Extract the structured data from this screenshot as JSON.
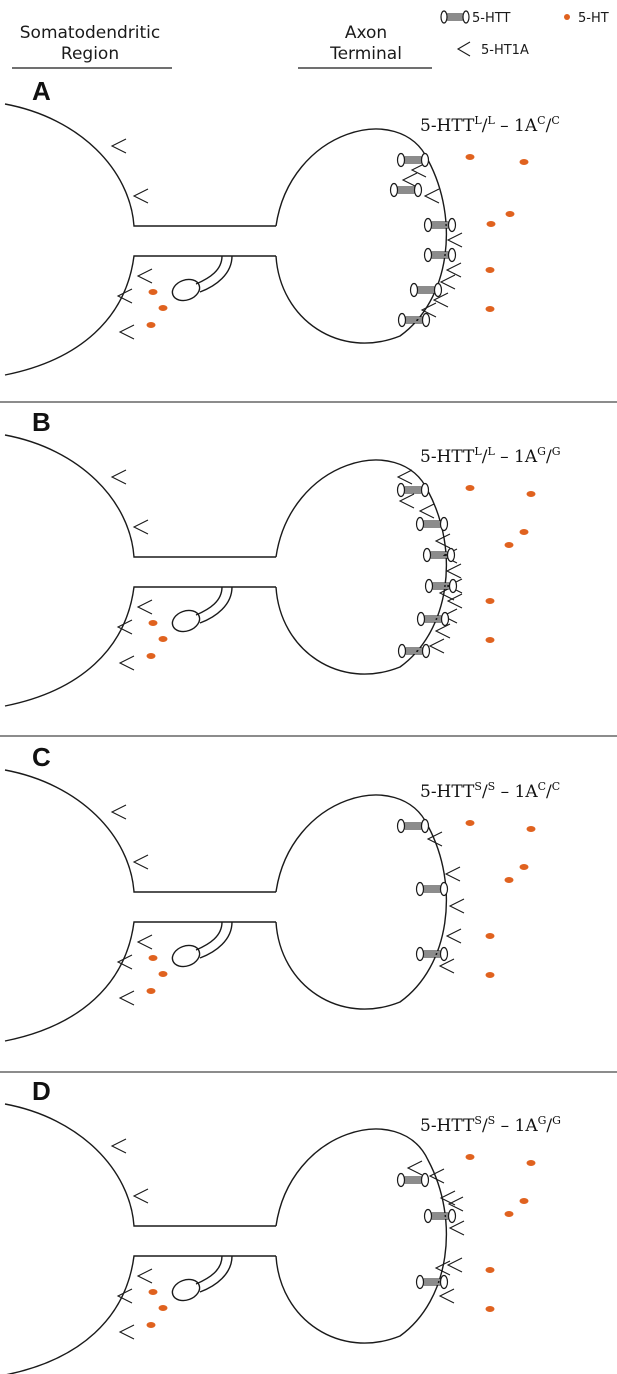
{
  "header": {
    "left_title_line1": "Somatodendritic",
    "left_title_line2": "Region",
    "right_title_line1": "Axon",
    "right_title_line2": "Terminal"
  },
  "legend": {
    "transporter": "5-HTT",
    "serotonin": "5-HT",
    "receptor": "5-HT1A"
  },
  "colors": {
    "serotonin_dot": "#e0621f",
    "line": "#1a1a1a"
  },
  "panels": [
    {
      "letter": "A",
      "genotype": {
        "base1": "5-HTT",
        "sup1": "L",
        "sub1": "L",
        "mid": " – 1A",
        "sup2": "C",
        "sub2": "C"
      },
      "transporters": 6,
      "terminal_receptors": 8,
      "synapse_dots": 7
    },
    {
      "letter": "B",
      "genotype": {
        "base1": "5-HTT",
        "sup1": "L",
        "sub1": "L",
        "mid": " – 1A",
        "sup2": "G",
        "sub2": "G"
      },
      "transporters": 6,
      "terminal_receptors": 12,
      "synapse_dots": 5
    },
    {
      "letter": "C",
      "genotype": {
        "base1": "5-HTT",
        "sup1": "S",
        "sub1": "S",
        "mid": " – 1A",
        "sup2": "C",
        "sub2": "C"
      },
      "transporters": 3,
      "terminal_receptors": 5,
      "synapse_dots": 5
    },
    {
      "letter": "D",
      "genotype": {
        "base1": "5-HTT",
        "sup1": "S",
        "sub1": "S",
        "mid": " – 1A",
        "sup2": "G",
        "sub2": "G"
      },
      "transporters": 3,
      "terminal_receptors": 8,
      "synapse_dots": 5
    }
  ]
}
